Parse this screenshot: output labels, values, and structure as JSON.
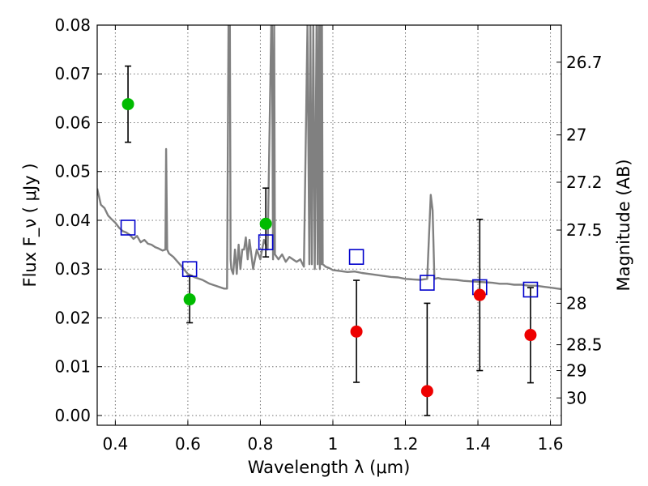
{
  "chart_data": {
    "type": "scatter",
    "xlabel": "Wavelength  λ (μm)",
    "ylabel": "Flux  F_ν  ( μJy )",
    "ylabel_right": "Magnitude (AB)",
    "xlim": [
      0.35,
      1.63
    ],
    "ylim": [
      -0.002,
      0.08
    ],
    "grid": true,
    "x_ticks": [
      {
        "value": 0.4,
        "label": "0.4"
      },
      {
        "value": 0.6,
        "label": "0.6"
      },
      {
        "value": 0.8,
        "label": "0.8"
      },
      {
        "value": 1.0,
        "label": "1"
      },
      {
        "value": 1.2,
        "label": "1.2"
      },
      {
        "value": 1.4,
        "label": "1.4"
      },
      {
        "value": 1.6,
        "label": "1.6"
      }
    ],
    "y_ticks": [
      {
        "value": 0.0,
        "label": "0.00"
      },
      {
        "value": 0.01,
        "label": "0.01"
      },
      {
        "value": 0.02,
        "label": "0.02"
      },
      {
        "value": 0.03,
        "label": "0.03"
      },
      {
        "value": 0.04,
        "label": "0.04"
      },
      {
        "value": 0.05,
        "label": "0.05"
      },
      {
        "value": 0.06,
        "label": "0.06"
      },
      {
        "value": 0.07,
        "label": "0.07"
      },
      {
        "value": 0.08,
        "label": "0.08"
      }
    ],
    "right_ticks": [
      {
        "flux": 0.0724,
        "label": "26.7"
      },
      {
        "flux": 0.0575,
        "label": "27"
      },
      {
        "flux": 0.0478,
        "label": "27.2"
      },
      {
        "flux": 0.038,
        "label": "27.5"
      },
      {
        "flux": 0.023,
        "label": "28"
      },
      {
        "flux": 0.0145,
        "label": "28.5"
      },
      {
        "flux": 0.0092,
        "label": "29"
      },
      {
        "flux": 0.0036,
        "label": "30"
      }
    ],
    "colors": {
      "model": "#808080",
      "model_boxes": "#0000cc",
      "detections": "#00bb00",
      "non_detections": "#ee0000",
      "error_bars": "#000000"
    },
    "model_spectrum": {
      "x": [
        0.35,
        0.36,
        0.37,
        0.38,
        0.39,
        0.4,
        0.41,
        0.42,
        0.43,
        0.44,
        0.45,
        0.46,
        0.47,
        0.48,
        0.49,
        0.5,
        0.51,
        0.52,
        0.53,
        0.538,
        0.54,
        0.543,
        0.548,
        0.56,
        0.58,
        0.6,
        0.62,
        0.64,
        0.66,
        0.68,
        0.7,
        0.708,
        0.712,
        0.714,
        0.716,
        0.718,
        0.72,
        0.725,
        0.73,
        0.735,
        0.74,
        0.745,
        0.75,
        0.755,
        0.76,
        0.765,
        0.77,
        0.78,
        0.79,
        0.8,
        0.81,
        0.82,
        0.83,
        0.832,
        0.835,
        0.838,
        0.84,
        0.85,
        0.86,
        0.87,
        0.88,
        0.89,
        0.9,
        0.91,
        0.92,
        0.93,
        0.935,
        0.938,
        0.942,
        0.946,
        0.95,
        0.955,
        0.958,
        0.961,
        0.964,
        0.966,
        0.968,
        0.97,
        0.972,
        0.98,
        0.99,
        1.0,
        1.02,
        1.04,
        1.06,
        1.08,
        1.1,
        1.12,
        1.14,
        1.16,
        1.18,
        1.2,
        1.22,
        1.24,
        1.26,
        1.27,
        1.275,
        1.28,
        1.29,
        1.3,
        1.32,
        1.34,
        1.36,
        1.38,
        1.4,
        1.42,
        1.44,
        1.46,
        1.48,
        1.5,
        1.52,
        1.54,
        1.56,
        1.58,
        1.6,
        1.63
      ],
      "y": [
        0.0465,
        0.0432,
        0.0425,
        0.041,
        0.0402,
        0.0395,
        0.0385,
        0.0378,
        0.0375,
        0.037,
        0.0362,
        0.0368,
        0.0355,
        0.036,
        0.0352,
        0.035,
        0.0345,
        0.0342,
        0.0338,
        0.034,
        0.0546,
        0.034,
        0.0332,
        0.0325,
        0.0308,
        0.029,
        0.0283,
        0.0278,
        0.027,
        0.0265,
        0.026,
        0.026,
        0.08,
        0.08,
        0.08,
        0.032,
        0.03,
        0.029,
        0.034,
        0.029,
        0.035,
        0.03,
        0.034,
        0.034,
        0.0365,
        0.032,
        0.036,
        0.03,
        0.034,
        0.032,
        0.036,
        0.034,
        0.08,
        0.08,
        0.032,
        0.08,
        0.033,
        0.032,
        0.033,
        0.0315,
        0.0325,
        0.032,
        0.0315,
        0.032,
        0.0305,
        0.08,
        0.031,
        0.08,
        0.031,
        0.08,
        0.03,
        0.08,
        0.031,
        0.08,
        0.03,
        0.08,
        0.031,
        0.08,
        0.031,
        0.0305,
        0.0302,
        0.0298,
        0.0296,
        0.0294,
        0.0295,
        0.0292,
        0.029,
        0.0288,
        0.0286,
        0.0284,
        0.0283,
        0.028,
        0.0279,
        0.0278,
        0.028,
        0.0452,
        0.042,
        0.028,
        0.0282,
        0.028,
        0.0279,
        0.0278,
        0.0276,
        0.0275,
        0.0274,
        0.0273,
        0.0272,
        0.027,
        0.027,
        0.0268,
        0.0268,
        0.0266,
        0.0266,
        0.0264,
        0.0262,
        0.0259
      ]
    },
    "model_boxes": {
      "x": [
        0.435,
        0.605,
        0.815,
        1.065,
        1.26,
        1.405,
        1.545
      ],
      "y": [
        0.0385,
        0.03,
        0.0355,
        0.0325,
        0.0272,
        0.0263,
        0.0258
      ]
    },
    "detections": {
      "x": [
        0.435,
        0.605,
        0.815
      ],
      "y": [
        0.0638,
        0.0238,
        0.0393
      ],
      "err_low": [
        0.0078,
        0.0048,
        0.0068
      ],
      "err_high": [
        0.0078,
        0.0048,
        0.0073
      ]
    },
    "non_detections": {
      "x": [
        1.065,
        1.26,
        1.405,
        1.545
      ],
      "y": [
        0.0172,
        0.005,
        0.0247,
        0.0165
      ],
      "err_low": [
        0.0104,
        0.005,
        0.0155,
        0.0098
      ],
      "err_high": [
        0.0105,
        0.018,
        0.0155,
        0.0097
      ]
    }
  }
}
